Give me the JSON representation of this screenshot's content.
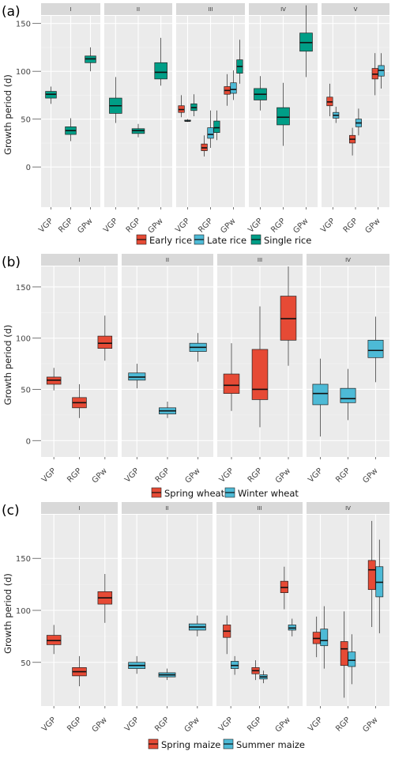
{
  "colors": {
    "early_rice": "#e64a35",
    "late_rice": "#4dbad6",
    "single_rice": "#009e87",
    "spring_wheat": "#e64a35",
    "winter_wheat": "#4dbad6",
    "spring_maize": "#e64a35",
    "summer_maize": "#4dbad6"
  },
  "chart_data": [
    {
      "type": "box",
      "panel_label": "(a)",
      "ylabel": "Growth period (d)",
      "y_ticks": [
        0,
        50,
        100,
        150
      ],
      "ylim": [
        -42,
        158
      ],
      "categories": [
        "VGP",
        "RGP",
        "GPw"
      ],
      "legend": [
        {
          "name": "Early rice",
          "color_key": "early_rice"
        },
        {
          "name": "Late rice",
          "color_key": "late_rice"
        },
        {
          "name": "Single rice",
          "color_key": "single_rice"
        }
      ],
      "facets": [
        {
          "label": "I",
          "series": [
            {
              "color_key": "single_rice",
              "boxes": [
                {
                  "category": "VGP",
                  "whisker_low": 66,
                  "q1": 72,
                  "median": 76,
                  "q3": 79,
                  "whisker_high": 84
                },
                {
                  "category": "RGP",
                  "whisker_low": 27,
                  "q1": 34,
                  "median": 38,
                  "q3": 42,
                  "whisker_high": 51
                },
                {
                  "category": "GPw",
                  "whisker_low": 100,
                  "q1": 109,
                  "median": 113,
                  "q3": 116,
                  "whisker_high": 125
                }
              ]
            }
          ]
        },
        {
          "label": "II",
          "series": [
            {
              "color_key": "single_rice",
              "boxes": [
                {
                  "category": "VGP",
                  "whisker_low": 46,
                  "q1": 56,
                  "median": 64,
                  "q3": 72,
                  "whisker_high": 94
                },
                {
                  "category": "RGP",
                  "whisker_low": 31,
                  "q1": 35,
                  "median": 38,
                  "q3": 40,
                  "whisker_high": 45
                },
                {
                  "category": "GPw",
                  "whisker_low": 85,
                  "q1": 92,
                  "median": 99,
                  "q3": 109,
                  "whisker_high": 135
                }
              ]
            }
          ]
        },
        {
          "label": "III",
          "series": [
            {
              "color_key": "early_rice",
              "boxes": [
                {
                  "category": "VGP",
                  "whisker_low": 52,
                  "q1": 57,
                  "median": 60,
                  "q3": 64,
                  "whisker_high": 75
                },
                {
                  "category": "RGP",
                  "whisker_low": 11,
                  "q1": 17,
                  "median": 20,
                  "q3": 24,
                  "whisker_high": 33
                },
                {
                  "category": "GPw",
                  "whisker_low": 64,
                  "q1": 76,
                  "median": 80,
                  "q3": 84,
                  "whisker_high": 97
                }
              ]
            },
            {
              "color_key": "late_rice",
              "boxes": [
                {
                  "category": "VGP",
                  "whisker_low": 47,
                  "q1": 48,
                  "median": 48,
                  "q3": 49,
                  "whisker_high": 50
                },
                {
                  "category": "RGP",
                  "whisker_low": 20,
                  "q1": 30,
                  "median": 34,
                  "q3": 41,
                  "whisker_high": 59
                },
                {
                  "category": "GPw",
                  "whisker_low": 70,
                  "q1": 77,
                  "median": 81,
                  "q3": 88,
                  "whisker_high": 101
                }
              ]
            },
            {
              "color_key": "single_rice",
              "boxes": [
                {
                  "category": "VGP",
                  "whisker_low": 53,
                  "q1": 59,
                  "median": 62,
                  "q3": 66,
                  "whisker_high": 76
                },
                {
                  "category": "RGP",
                  "whisker_low": 28,
                  "q1": 36,
                  "median": 41,
                  "q3": 48,
                  "whisker_high": 59
                },
                {
                  "category": "GPw",
                  "whisker_low": 87,
                  "q1": 98,
                  "median": 105,
                  "q3": 112,
                  "whisker_high": 133
                }
              ]
            }
          ]
        },
        {
          "label": "IV",
          "series": [
            {
              "color_key": "single_rice",
              "boxes": [
                {
                  "category": "VGP",
                  "whisker_low": 59,
                  "q1": 70,
                  "median": 76,
                  "q3": 82,
                  "whisker_high": 95
                },
                {
                  "category": "RGP",
                  "whisker_low": 22,
                  "q1": 44,
                  "median": 52,
                  "q3": 62,
                  "whisker_high": 88
                },
                {
                  "category": "GPw",
                  "whisker_low": 94,
                  "q1": 121,
                  "median": 130,
                  "q3": 140,
                  "whisker_high": 169
                }
              ]
            }
          ]
        },
        {
          "label": "V",
          "series": [
            {
              "color_key": "early_rice",
              "boxes": [
                {
                  "category": "VGP",
                  "whisker_low": 53,
                  "q1": 64,
                  "median": 68,
                  "q3": 73,
                  "whisker_high": 87
                },
                {
                  "category": "RGP",
                  "whisker_low": 12,
                  "q1": 25,
                  "median": 29,
                  "q3": 33,
                  "whisker_high": 41
                },
                {
                  "category": "GPw",
                  "whisker_low": 75,
                  "q1": 92,
                  "median": 97,
                  "q3": 103,
                  "whisker_high": 119
                }
              ]
            },
            {
              "color_key": "late_rice",
              "boxes": [
                {
                  "category": "VGP",
                  "whisker_low": 46,
                  "q1": 51,
                  "median": 54,
                  "q3": 57,
                  "whisker_high": 63
                },
                {
                  "category": "RGP",
                  "whisker_low": 33,
                  "q1": 42,
                  "median": 46,
                  "q3": 50,
                  "whisker_high": 61
                },
                {
                  "category": "GPw",
                  "whisker_low": 82,
                  "q1": 95,
                  "median": 101,
                  "q3": 106,
                  "whisker_high": 119
                }
              ]
            }
          ]
        }
      ]
    },
    {
      "type": "box",
      "panel_label": "(b)",
      "ylabel": "Growth period (d)",
      "y_ticks": [
        0,
        50,
        100,
        150
      ],
      "ylim": [
        -16,
        170
      ],
      "categories": [
        "VGP",
        "RGP",
        "GPw"
      ],
      "legend": [
        {
          "name": "Spring wheat",
          "color_key": "spring_wheat"
        },
        {
          "name": "Winter wheat",
          "color_key": "winter_wheat"
        }
      ],
      "facets": [
        {
          "label": "I",
          "series": [
            {
              "color_key": "spring_wheat",
              "boxes": [
                {
                  "category": "VGP",
                  "whisker_low": 49,
                  "q1": 55,
                  "median": 59,
                  "q3": 62,
                  "whisker_high": 71
                },
                {
                  "category": "RGP",
                  "whisker_low": 22,
                  "q1": 32,
                  "median": 37,
                  "q3": 42,
                  "whisker_high": 55
                },
                {
                  "category": "GPw",
                  "whisker_low": 78,
                  "q1": 90,
                  "median": 95,
                  "q3": 102,
                  "whisker_high": 122
                }
              ]
            }
          ]
        },
        {
          "label": "II",
          "series": [
            {
              "color_key": "winter_wheat",
              "boxes": [
                {
                  "category": "VGP",
                  "whisker_low": 51,
                  "q1": 59,
                  "median": 62,
                  "q3": 66,
                  "whisker_high": 75
                },
                {
                  "category": "RGP",
                  "whisker_low": 22,
                  "q1": 26,
                  "median": 29,
                  "q3": 32,
                  "whisker_high": 38
                },
                {
                  "category": "GPw",
                  "whisker_low": 77,
                  "q1": 87,
                  "median": 91,
                  "q3": 95,
                  "whisker_high": 105
                }
              ]
            }
          ]
        },
        {
          "label": "III",
          "series": [
            {
              "color_key": "spring_wheat",
              "boxes": [
                {
                  "category": "VGP",
                  "whisker_low": 29,
                  "q1": 46,
                  "median": 54,
                  "q3": 65,
                  "whisker_high": 95
                },
                {
                  "category": "RGP",
                  "whisker_low": 13,
                  "q1": 40,
                  "median": 50,
                  "q3": 89,
                  "whisker_high": 131
                },
                {
                  "category": "GPw",
                  "whisker_low": 73,
                  "q1": 98,
                  "median": 119,
                  "q3": 141,
                  "whisker_high": 170
                }
              ]
            }
          ]
        },
        {
          "label": "IV",
          "series": [
            {
              "color_key": "winter_wheat",
              "boxes": [
                {
                  "category": "VGP",
                  "whisker_low": 4,
                  "q1": 35,
                  "median": 46,
                  "q3": 55,
                  "whisker_high": 80
                },
                {
                  "category": "RGP",
                  "whisker_low": 20,
                  "q1": 37,
                  "median": 41,
                  "q3": 51,
                  "whisker_high": 70
                },
                {
                  "category": "GPw",
                  "whisker_low": 57,
                  "q1": 81,
                  "median": 88,
                  "q3": 98,
                  "whisker_high": 121
                }
              ]
            }
          ]
        }
      ]
    },
    {
      "type": "box",
      "panel_label": "(c)",
      "ylabel": "Growth period (d)",
      "y_ticks": [
        50,
        100,
        150
      ],
      "ylim": [
        8,
        192
      ],
      "categories": [
        "VGP",
        "RGP",
        "GPw"
      ],
      "legend": [
        {
          "name": "Spring maize",
          "color_key": "spring_maize"
        },
        {
          "name": "Summer maize",
          "color_key": "summer_maize"
        }
      ],
      "facets": [
        {
          "label": "I",
          "series": [
            {
              "color_key": "spring_maize",
              "boxes": [
                {
                  "category": "VGP",
                  "whisker_low": 58,
                  "q1": 67,
                  "median": 71,
                  "q3": 76,
                  "whisker_high": 86
                },
                {
                  "category": "RGP",
                  "whisker_low": 27,
                  "q1": 37,
                  "median": 41,
                  "q3": 45,
                  "whisker_high": 56
                },
                {
                  "category": "GPw",
                  "whisker_low": 88,
                  "q1": 106,
                  "median": 112,
                  "q3": 118,
                  "whisker_high": 135
                }
              ]
            }
          ]
        },
        {
          "label": "II",
          "series": [
            {
              "color_key": "summer_maize",
              "boxes": [
                {
                  "category": "VGP",
                  "whisker_low": 39,
                  "q1": 44,
                  "median": 47,
                  "q3": 50,
                  "whisker_high": 56
                },
                {
                  "category": "RGP",
                  "whisker_low": 33,
                  "q1": 36,
                  "median": 38,
                  "q3": 40,
                  "whisker_high": 44
                },
                {
                  "category": "GPw",
                  "whisker_low": 75,
                  "q1": 81,
                  "median": 84,
                  "q3": 87,
                  "whisker_high": 95
                }
              ]
            }
          ]
        },
        {
          "label": "III",
          "series": [
            {
              "color_key": "spring_maize",
              "boxes": [
                {
                  "category": "VGP",
                  "whisker_low": 58,
                  "q1": 74,
                  "median": 80,
                  "q3": 86,
                  "whisker_high": 95
                },
                {
                  "category": "RGP",
                  "whisker_low": 33,
                  "q1": 39,
                  "median": 42,
                  "q3": 45,
                  "whisker_high": 52
                },
                {
                  "category": "GPw",
                  "whisker_low": 101,
                  "q1": 117,
                  "median": 122,
                  "q3": 128,
                  "whisker_high": 142
                }
              ]
            },
            {
              "color_key": "summer_maize",
              "boxes": [
                {
                  "category": "VGP",
                  "whisker_low": 38,
                  "q1": 44,
                  "median": 47,
                  "q3": 51,
                  "whisker_high": 56
                },
                {
                  "category": "RGP",
                  "whisker_low": 30,
                  "q1": 34,
                  "median": 36,
                  "q3": 38,
                  "whisker_high": 42
                },
                {
                  "category": "GPw",
                  "whisker_low": 75,
                  "q1": 81,
                  "median": 83,
                  "q3": 86,
                  "whisker_high": 92
                }
              ]
            }
          ]
        },
        {
          "label": "IV",
          "series": [
            {
              "color_key": "spring_maize",
              "boxes": [
                {
                  "category": "VGP",
                  "whisker_low": 55,
                  "q1": 68,
                  "median": 73,
                  "q3": 79,
                  "whisker_high": 94
                },
                {
                  "category": "RGP",
                  "whisker_low": 16,
                  "q1": 47,
                  "median": 63,
                  "q3": 70,
                  "whisker_high": 99
                },
                {
                  "category": "GPw",
                  "whisker_low": 84,
                  "q1": 120,
                  "median": 139,
                  "q3": 148,
                  "whisker_high": 186
                }
              ]
            },
            {
              "color_key": "summer_maize",
              "boxes": [
                {
                  "category": "VGP",
                  "whisker_low": 44,
                  "q1": 66,
                  "median": 71,
                  "q3": 82,
                  "whisker_high": 104
                },
                {
                  "category": "RGP",
                  "whisker_low": 29,
                  "q1": 46,
                  "median": 52,
                  "q3": 60,
                  "whisker_high": 77
                },
                {
                  "category": "GPw",
                  "whisker_low": 78,
                  "q1": 113,
                  "median": 127,
                  "q3": 142,
                  "whisker_high": 168
                }
              ]
            }
          ]
        }
      ]
    }
  ]
}
